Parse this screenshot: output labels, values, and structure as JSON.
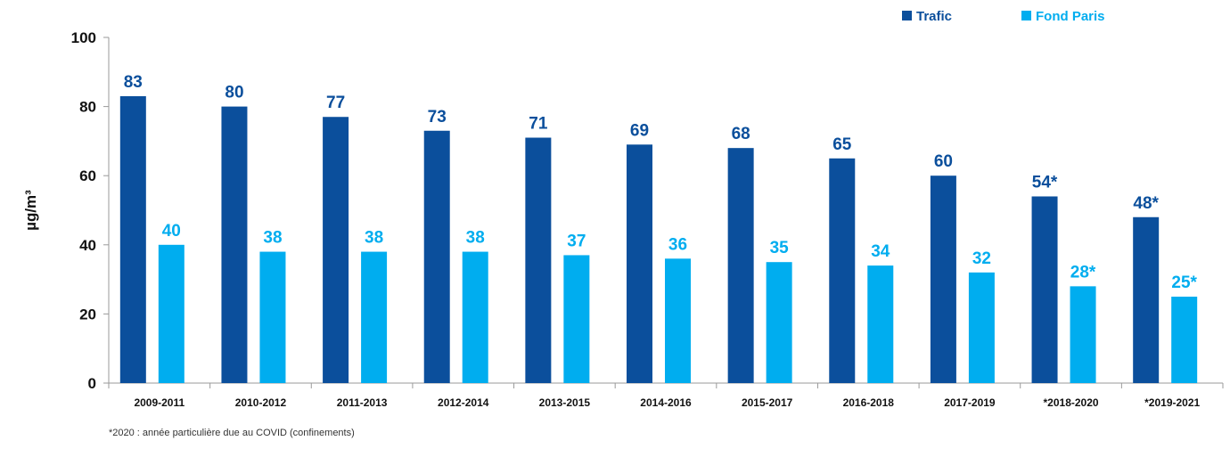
{
  "chart_data": {
    "type": "bar",
    "categories": [
      "2009-2011",
      "2010-2012",
      "2011-2013",
      "2012-2014",
      "2013-2015",
      "2014-2016",
      "2015-2017",
      "2016-2018",
      "2017-2019",
      "*2018-2020",
      "*2019-2021"
    ],
    "series": [
      {
        "name": "Trafic",
        "color": "#0b4f9c",
        "values": [
          83,
          80,
          77,
          73,
          71,
          69,
          68,
          65,
          60,
          54,
          48
        ],
        "labels": [
          "83",
          "80",
          "77",
          "73",
          "71",
          "69",
          "68",
          "65",
          "60",
          "54*",
          "48*"
        ]
      },
      {
        "name": "Fond Paris",
        "color": "#00adef",
        "values": [
          40,
          38,
          38,
          38,
          37,
          36,
          35,
          34,
          32,
          28,
          25
        ],
        "labels": [
          "40",
          "38",
          "38",
          "38",
          "37",
          "36",
          "35",
          "34",
          "32",
          "28*",
          "25*"
        ]
      }
    ],
    "ylabel": "µg/m³",
    "ylim": [
      0,
      100
    ],
    "yticks": [
      0,
      20,
      40,
      60,
      80,
      100
    ],
    "legend_position": "top-right",
    "grid": false
  },
  "footnote": "*2020 : année particulière due au COVID (confinements)"
}
